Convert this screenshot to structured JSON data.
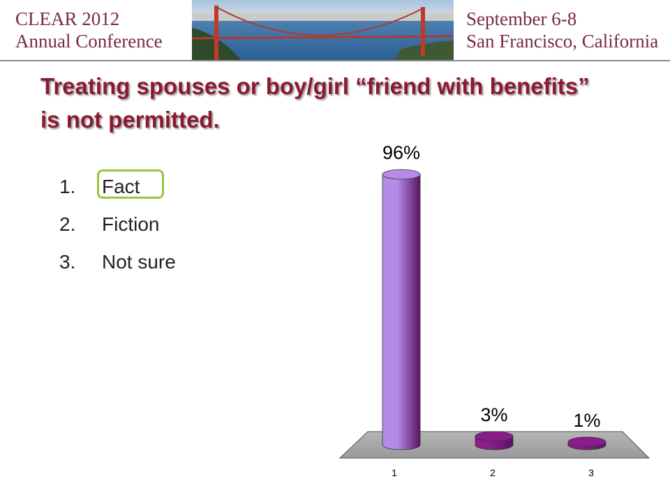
{
  "header": {
    "left_line1": "CLEAR 2012",
    "left_line2": "Annual Conference",
    "right_line1": "September 6-8",
    "right_line2": "San Francisco, California"
  },
  "title": "Treating spouses or boy/girl “friend with benefits” is not permitted.",
  "options": [
    {
      "number": "1.",
      "label": "Fact"
    },
    {
      "number": "2.",
      "label": "Fiction"
    },
    {
      "number": "3.",
      "label": "Not sure"
    }
  ],
  "chart_data": {
    "type": "bar",
    "categories": [
      "1",
      "2",
      "3"
    ],
    "values": [
      96,
      3,
      1
    ],
    "value_labels": [
      "96%",
      "3%",
      "1%"
    ],
    "colors": [
      "#b48be6",
      "#8a1d8c",
      "#8a1d8c"
    ]
  }
}
